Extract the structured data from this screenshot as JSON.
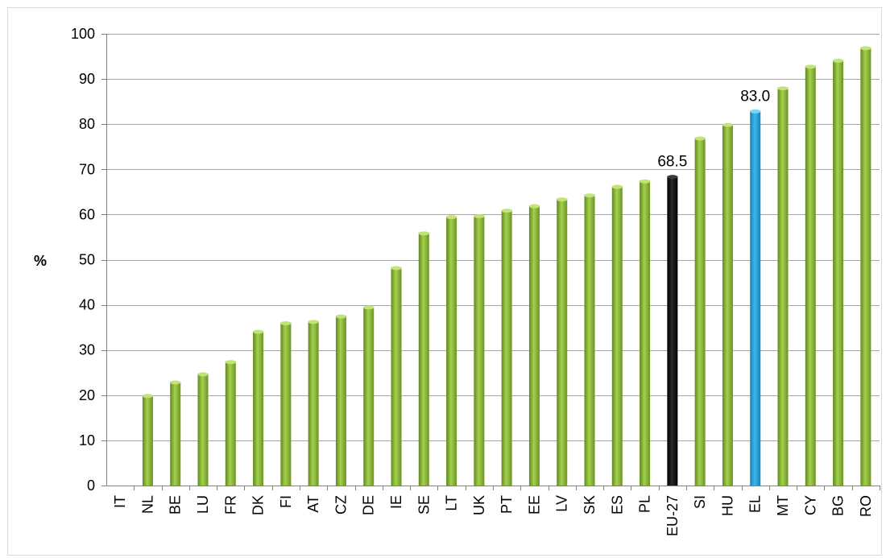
{
  "chart_data": {
    "type": "bar",
    "title": "",
    "xlabel": "",
    "ylabel": "%",
    "ylim": [
      0,
      100
    ],
    "yticks": [
      0,
      10,
      20,
      30,
      40,
      50,
      60,
      70,
      80,
      90,
      100
    ],
    "grid": true,
    "legend": "none",
    "categories": [
      "IT",
      "NL",
      "BE",
      "LU",
      "FR",
      "DK",
      "FI",
      "AT",
      "CZ",
      "DE",
      "IE",
      "SE",
      "LT",
      "UK",
      "PT",
      "EE",
      "LV",
      "SK",
      "ES",
      "PL",
      "EU-27",
      "SI",
      "HU",
      "EL",
      "MT",
      "CY",
      "BG",
      "RO"
    ],
    "values": [
      0,
      20.0,
      23.0,
      24.8,
      27.5,
      34.2,
      36.1,
      36.4,
      37.6,
      39.6,
      48.3,
      56.0,
      59.6,
      59.8,
      61.0,
      62.0,
      63.5,
      64.4,
      66.3,
      67.5,
      68.5,
      77.0,
      80.0,
      83.0,
      88.1,
      92.9,
      94.2,
      97.0
    ],
    "bar_colors": {
      "default": "#8cb33a",
      "EU-27": "#000000",
      "EL": "#1e9ad6"
    },
    "data_labels": [
      {
        "category": "EU-27",
        "text": "68.5"
      },
      {
        "category": "EL",
        "text": "83.0"
      }
    ]
  }
}
